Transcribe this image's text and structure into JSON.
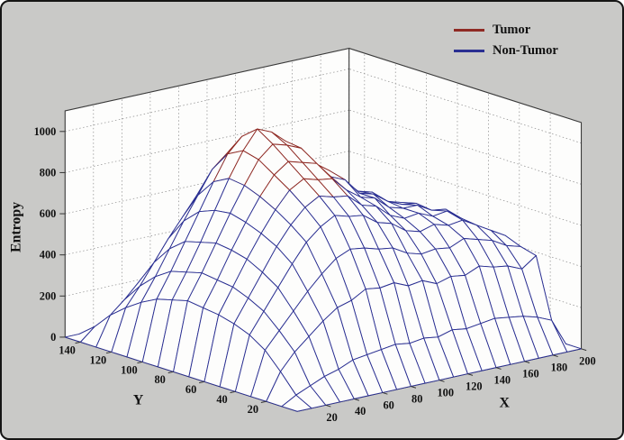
{
  "window": {
    "background": "#c9c9c7",
    "frame_color": "#151515"
  },
  "legend": {
    "items": [
      {
        "label": "Tumor",
        "color": "#8f2a24"
      },
      {
        "label": "Non-Tumor",
        "color": "#2a2f92"
      }
    ]
  },
  "chart_data": {
    "type": "heatmap",
    "representation": "3d-wireframe-mesh",
    "title": "",
    "xlabel": "X",
    "ylabel": "Y",
    "zlabel": "Entropy",
    "legend_entries": [
      "Tumor",
      "Non-Tumor"
    ],
    "xlim": [
      0,
      200
    ],
    "ylim": [
      0,
      150
    ],
    "zlim": [
      0,
      1100
    ],
    "x_ticks": [
      20,
      40,
      60,
      80,
      100,
      120,
      140,
      160,
      180,
      200
    ],
    "y_ticks": [
      20,
      40,
      60,
      80,
      100,
      120,
      140
    ],
    "z_ticks": [
      0,
      200,
      400,
      600,
      800,
      1000
    ],
    "grid": true,
    "tumor_threshold": 760,
    "colors": {
      "mesh_face": "#fdfdfc",
      "wall": "#fdfdfc",
      "floor": "#f6f6f4",
      "gridline": "#8f8f8f",
      "box_edge": "#3a3a3a"
    },
    "x": [
      0,
      10,
      20,
      30,
      40,
      50,
      60,
      70,
      80,
      90,
      100,
      110,
      120,
      130,
      140,
      150,
      160,
      170,
      180,
      190,
      200
    ],
    "y": [
      0,
      10,
      20,
      30,
      40,
      50,
      60,
      70,
      80,
      90,
      100,
      110,
      120,
      130,
      140,
      150
    ],
    "z_grid": [
      [
        0,
        0,
        0,
        0,
        0,
        0,
        0,
        0,
        0,
        0,
        0,
        0,
        0,
        0,
        0,
        0,
        0,
        0,
        0,
        0,
        0
      ],
      [
        0,
        40,
        70,
        100,
        120,
        150,
        160,
        170,
        180,
        170,
        180,
        170,
        190,
        180,
        190,
        200,
        190,
        180,
        160,
        130,
        0
      ],
      [
        0,
        130,
        210,
        270,
        330,
        380,
        400,
        440,
        430,
        440,
        410,
        420,
        390,
        410,
        400,
        430,
        410,
        400,
        370,
        420,
        0
      ],
      [
        0,
        210,
        290,
        370,
        450,
        520,
        580,
        610,
        600,
        580,
        570,
        530,
        510,
        520,
        510,
        540,
        520,
        500,
        460,
        440,
        0
      ],
      [
        0,
        260,
        360,
        460,
        560,
        650,
        710,
        750,
        730,
        720,
        670,
        650,
        600,
        580,
        600,
        580,
        590,
        550,
        510,
        470,
        0
      ],
      [
        0,
        290,
        400,
        510,
        620,
        710,
        780,
        820,
        800,
        790,
        730,
        710,
        650,
        620,
        630,
        600,
        610,
        560,
        500,
        430,
        0
      ],
      [
        0,
        310,
        430,
        550,
        660,
        760,
        840,
        880,
        860,
        850,
        780,
        730,
        710,
        650,
        630,
        630,
        590,
        580,
        490,
        400,
        0
      ],
      [
        0,
        320,
        440,
        570,
        690,
        800,
        890,
        940,
        920,
        900,
        820,
        790,
        710,
        690,
        640,
        610,
        600,
        540,
        470,
        380,
        0
      ],
      [
        0,
        330,
        450,
        580,
        710,
        830,
        940,
        1000,
        980,
        950,
        860,
        810,
        750,
        680,
        660,
        600,
        580,
        520,
        440,
        350,
        0
      ],
      [
        0,
        310,
        430,
        560,
        700,
        840,
        960,
        1050,
        1020,
        960,
        870,
        780,
        710,
        670,
        610,
        590,
        530,
        480,
        400,
        320,
        0
      ],
      [
        0,
        290,
        410,
        540,
        670,
        800,
        920,
        990,
        960,
        910,
        810,
        750,
        660,
        620,
        560,
        540,
        480,
        430,
        360,
        280,
        0
      ],
      [
        0,
        250,
        360,
        480,
        600,
        710,
        820,
        880,
        850,
        810,
        710,
        660,
        570,
        530,
        470,
        450,
        390,
        340,
        280,
        210,
        0
      ],
      [
        0,
        200,
        290,
        390,
        490,
        580,
        670,
        720,
        690,
        660,
        570,
        530,
        450,
        420,
        360,
        340,
        290,
        250,
        200,
        140,
        0
      ],
      [
        0,
        140,
        200,
        270,
        340,
        410,
        470,
        500,
        480,
        460,
        390,
        360,
        300,
        280,
        230,
        210,
        170,
        140,
        100,
        60,
        0
      ],
      [
        0,
        60,
        90,
        130,
        160,
        200,
        220,
        240,
        230,
        220,
        180,
        170,
        140,
        120,
        100,
        80,
        60,
        50,
        30,
        20,
        0
      ],
      [
        0,
        0,
        0,
        0,
        0,
        0,
        0,
        0,
        0,
        0,
        0,
        0,
        0,
        0,
        0,
        0,
        0,
        0,
        0,
        0,
        0
      ]
    ]
  }
}
